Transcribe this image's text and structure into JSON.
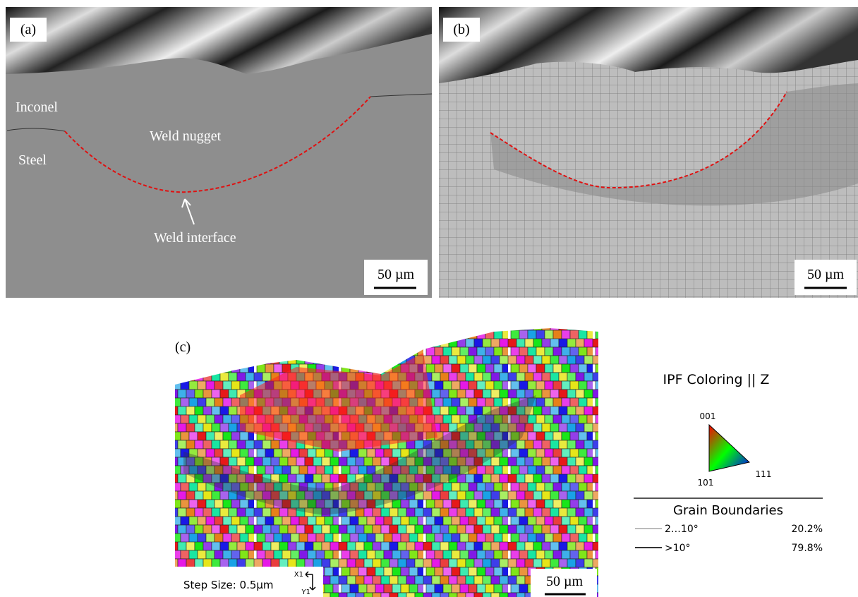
{
  "panels": [
    {
      "label": "(a)",
      "annotations": [
        "Inconel",
        "Weld nugget",
        "Steel",
        "Weld interface"
      ],
      "scale_bar": "50 µm"
    },
    {
      "label": "(b)",
      "scale_bar": "50 µm"
    },
    {
      "label": "(c)",
      "scale_bar": "50 µm",
      "step_size": "Step Size: 0.5µm",
      "axes": [
        "X1",
        "Y1"
      ]
    }
  ],
  "legend": {
    "title": "IPF Coloring || Z",
    "triangle_labels": [
      "001",
      "101",
      "111"
    ],
    "grain_boundaries": {
      "title": "Grain Boundaries",
      "rows": [
        {
          "label": "2…10°",
          "fraction": "20.2%"
        },
        {
          "label": ">10°",
          "fraction": "79.8%"
        }
      ]
    }
  }
}
